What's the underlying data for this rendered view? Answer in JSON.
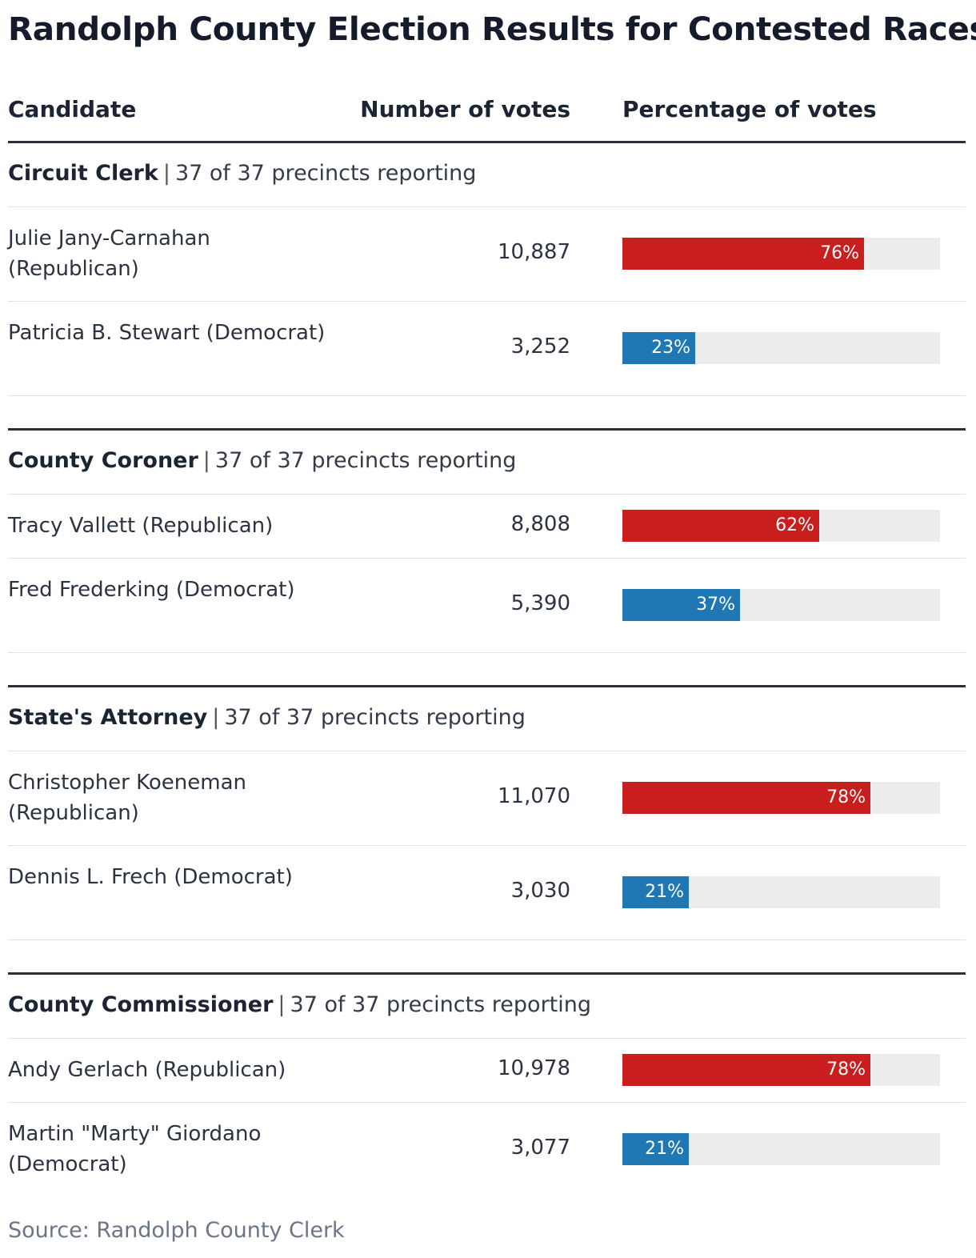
{
  "title": "Randolph County Election Results for Contested Races",
  "columns": {
    "candidate": "Candidate",
    "votes": "Number of votes",
    "percentage": "Percentage of votes"
  },
  "colors": {
    "republican": "#c81e1e",
    "democrat": "#1f77b4",
    "track": "#ececec"
  },
  "source": "Source: Randolph County Clerk",
  "chart_data": {
    "type": "bar",
    "title": "Randolph County Election Results for Contested Races",
    "xlim": [
      0,
      100
    ],
    "races": [
      {
        "name": "Circuit Clerk",
        "reporting": "37 of 37 precincts reporting",
        "candidates": [
          {
            "name": "Julie Jany-Carnahan (Republican)",
            "party": "republican",
            "votes": "10,887",
            "percent": 76,
            "label": "76%"
          },
          {
            "name": "Patricia B. Stewart (Democrat)",
            "party": "democrat",
            "votes": "3,252",
            "percent": 23,
            "label": "23%"
          }
        ]
      },
      {
        "name": "County Coroner",
        "reporting": "37 of 37 precincts reporting",
        "candidates": [
          {
            "name": "Tracy Vallett (Republican)",
            "party": "republican",
            "votes": "8,808",
            "percent": 62,
            "label": "62%"
          },
          {
            "name": "Fred Frederking (Democrat)",
            "party": "democrat",
            "votes": "5,390",
            "percent": 37,
            "label": "37%"
          }
        ]
      },
      {
        "name": "State's Attorney",
        "reporting": "37 of 37 precincts reporting",
        "candidates": [
          {
            "name": "Christopher Koeneman (Republican)",
            "party": "republican",
            "votes": "11,070",
            "percent": 78,
            "label": "78%"
          },
          {
            "name": "Dennis L. Frech (Democrat)",
            "party": "democrat",
            "votes": "3,030",
            "percent": 21,
            "label": "21%"
          }
        ]
      },
      {
        "name": "County Commissioner",
        "reporting": "37 of 37 precincts reporting",
        "candidates": [
          {
            "name": "Andy Gerlach (Republican)",
            "party": "republican",
            "votes": "10,978",
            "percent": 78,
            "label": "78%"
          },
          {
            "name": "Martin \"Marty\" Giordano (Democrat)",
            "party": "democrat",
            "votes": "3,077",
            "percent": 21,
            "label": "21%"
          }
        ]
      }
    ]
  }
}
